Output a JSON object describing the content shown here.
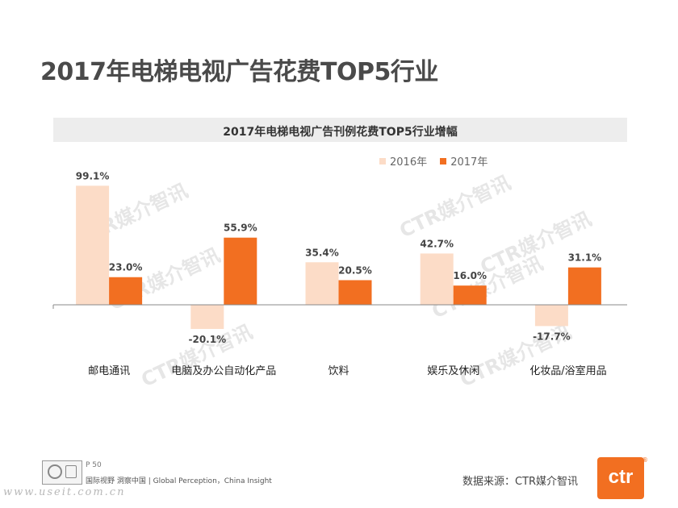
{
  "page": {
    "title": "2017年电梯电视广告花费TOP5行业",
    "page_number": "P 50",
    "footer_slogan": "国际视野 洞察中国 | Global Perception，China Insight",
    "source": "数据来源：CTR媒介智讯",
    "logo_text": "ctr",
    "watermark_text": "CTR媒介智讯",
    "site_watermark": "www.useit.com.cn"
  },
  "colors": {
    "series_2016": "#fcdcc7",
    "series_2017": "#f26f21",
    "axis": "#888888"
  },
  "chart_data": {
    "type": "bar",
    "title": "2017年电梯电视广告刊例花费TOP5行业增幅",
    "categories": [
      "邮电通讯",
      "电脑及办公自动化产品",
      "饮料",
      "娱乐及休闲",
      "化妆品/浴室用品"
    ],
    "series": [
      {
        "name": "2016年",
        "values": [
          99.1,
          -20.1,
          35.4,
          42.7,
          -17.7
        ],
        "labels": [
          "99.1%",
          "-20.1%",
          "35.4%",
          "42.7%",
          "-17.7%"
        ]
      },
      {
        "name": "2017年",
        "values": [
          23.0,
          55.9,
          20.5,
          16.0,
          31.1
        ],
        "labels": [
          "23.0%",
          "55.9%",
          "20.5%",
          "16.0%",
          "31.1%"
        ]
      }
    ],
    "unit": "%",
    "legend_position": "top-right",
    "grid": false
  }
}
